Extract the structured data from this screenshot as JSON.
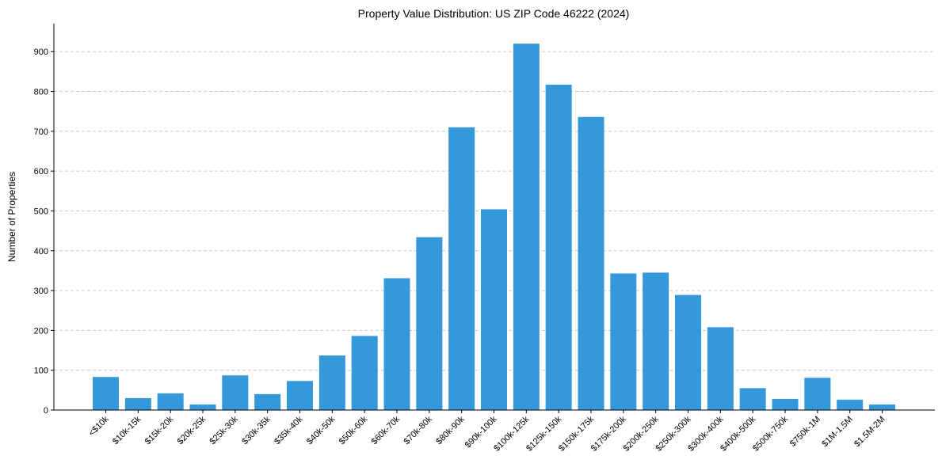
{
  "chart_data": {
    "type": "bar",
    "title": "Property Value Distribution: US ZIP Code 46222 (2024)",
    "xlabel": "",
    "ylabel": "Number of Properties",
    "ylim": [
      0,
      970
    ],
    "yticks": [
      0,
      100,
      200,
      300,
      400,
      500,
      600,
      700,
      800,
      900
    ],
    "grid": "y-dashed",
    "bar_color": "#3498db",
    "categories": [
      "<$10k",
      "$10k-15k",
      "$15k-20k",
      "$20k-25k",
      "$25k-30k",
      "$30k-35k",
      "$35k-40k",
      "$40k-50k",
      "$50k-60k",
      "$60k-70k",
      "$70k-80k",
      "$80k-90k",
      "$90k-100k",
      "$100k-125k",
      "$125k-150k",
      "$150k-175k",
      "$175k-200k",
      "$200k-250k",
      "$250k-300k",
      "$300k-400k",
      "$400k-500k",
      "$500k-750k",
      "$750k-1M",
      "$1M-1.5M",
      "$1.5M-2M"
    ],
    "values": [
      83,
      30,
      42,
      14,
      87,
      40,
      73,
      137,
      186,
      331,
      434,
      710,
      504,
      920,
      817,
      736,
      343,
      345,
      289,
      208,
      55,
      28,
      81,
      26,
      14
    ]
  }
}
